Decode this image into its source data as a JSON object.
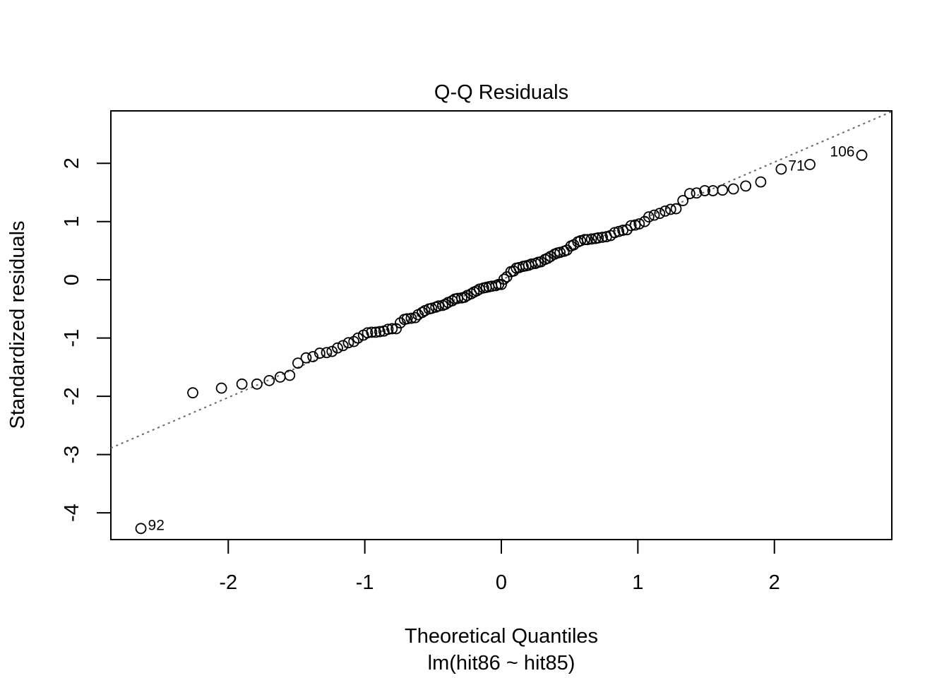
{
  "chart_data": {
    "type": "scatter",
    "title": "Q-Q Residuals",
    "xlabel": "Theoretical Quantiles",
    "sublabel": "lm(hit86 ~ hit85)",
    "ylabel": "Standardized residuals",
    "xlim": [
      -2.86,
      2.86
    ],
    "ylim": [
      -4.46,
      2.9
    ],
    "xticks": [
      -2,
      -1,
      0,
      1,
      2
    ],
    "yticks": [
      -4,
      -3,
      -2,
      -1,
      0,
      1,
      2
    ],
    "reference_line": {
      "style": "dotted",
      "color": "#666666",
      "intercept": 0.0,
      "slope": 1.01
    },
    "grid": false,
    "legend": "none",
    "points": [
      [
        -2.64,
        -4.27
      ],
      [
        -2.26,
        -1.94
      ],
      [
        -2.05,
        -1.86
      ],
      [
        -1.9,
        -1.79
      ],
      [
        -1.79,
        -1.79
      ],
      [
        -1.7,
        -1.73
      ],
      [
        -1.62,
        -1.67
      ],
      [
        -1.55,
        -1.64
      ],
      [
        -1.49,
        -1.43
      ],
      [
        -1.43,
        -1.34
      ],
      [
        -1.38,
        -1.32
      ],
      [
        -1.33,
        -1.26
      ],
      [
        -1.28,
        -1.25
      ],
      [
        -1.24,
        -1.23
      ],
      [
        -1.2,
        -1.17
      ],
      [
        -1.16,
        -1.13
      ],
      [
        -1.12,
        -1.08
      ],
      [
        -1.08,
        -1.06
      ],
      [
        -1.05,
        -1.0
      ],
      [
        -1.01,
        -0.95
      ],
      [
        -0.98,
        -0.91
      ],
      [
        -0.95,
        -0.9
      ],
      [
        -0.92,
        -0.9
      ],
      [
        -0.89,
        -0.89
      ],
      [
        -0.86,
        -0.88
      ],
      [
        -0.83,
        -0.85
      ],
      [
        -0.8,
        -0.84
      ],
      [
        -0.77,
        -0.84
      ],
      [
        -0.74,
        -0.74
      ],
      [
        -0.71,
        -0.68
      ],
      [
        -0.69,
        -0.67
      ],
      [
        -0.66,
        -0.66
      ],
      [
        -0.63,
        -0.65
      ],
      [
        -0.61,
        -0.6
      ],
      [
        -0.58,
        -0.56
      ],
      [
        -0.56,
        -0.53
      ],
      [
        -0.53,
        -0.5
      ],
      [
        -0.51,
        -0.49
      ],
      [
        -0.48,
        -0.47
      ],
      [
        -0.46,
        -0.45
      ],
      [
        -0.43,
        -0.44
      ],
      [
        -0.41,
        -0.42
      ],
      [
        -0.39,
        -0.39
      ],
      [
        -0.36,
        -0.36
      ],
      [
        -0.34,
        -0.33
      ],
      [
        -0.32,
        -0.32
      ],
      [
        -0.29,
        -0.31
      ],
      [
        -0.27,
        -0.3
      ],
      [
        -0.25,
        -0.27
      ],
      [
        -0.22,
        -0.24
      ],
      [
        -0.2,
        -0.21
      ],
      [
        -0.18,
        -0.19
      ],
      [
        -0.16,
        -0.16
      ],
      [
        -0.13,
        -0.14
      ],
      [
        -0.11,
        -0.13
      ],
      [
        -0.09,
        -0.12
      ],
      [
        -0.07,
        -0.11
      ],
      [
        -0.04,
        -0.1
      ],
      [
        -0.02,
        -0.08
      ],
      [
        0.0,
        -0.08
      ],
      [
        0.02,
        0.01
      ],
      [
        0.04,
        0.05
      ],
      [
        0.07,
        0.14
      ],
      [
        0.09,
        0.15
      ],
      [
        0.11,
        0.2
      ],
      [
        0.13,
        0.21
      ],
      [
        0.16,
        0.23
      ],
      [
        0.18,
        0.24
      ],
      [
        0.2,
        0.25
      ],
      [
        0.22,
        0.27
      ],
      [
        0.25,
        0.28
      ],
      [
        0.27,
        0.3
      ],
      [
        0.29,
        0.31
      ],
      [
        0.32,
        0.35
      ],
      [
        0.34,
        0.37
      ],
      [
        0.36,
        0.4
      ],
      [
        0.39,
        0.44
      ],
      [
        0.41,
        0.46
      ],
      [
        0.43,
        0.47
      ],
      [
        0.46,
        0.49
      ],
      [
        0.48,
        0.51
      ],
      [
        0.51,
        0.58
      ],
      [
        0.53,
        0.6
      ],
      [
        0.56,
        0.65
      ],
      [
        0.58,
        0.67
      ],
      [
        0.61,
        0.69
      ],
      [
        0.63,
        0.69
      ],
      [
        0.66,
        0.7
      ],
      [
        0.69,
        0.71
      ],
      [
        0.71,
        0.72
      ],
      [
        0.74,
        0.73
      ],
      [
        0.77,
        0.74
      ],
      [
        0.8,
        0.76
      ],
      [
        0.83,
        0.81
      ],
      [
        0.86,
        0.83
      ],
      [
        0.89,
        0.85
      ],
      [
        0.92,
        0.86
      ],
      [
        0.95,
        0.93
      ],
      [
        0.98,
        0.94
      ],
      [
        1.01,
        0.96
      ],
      [
        1.05,
        1.0
      ],
      [
        1.08,
        1.08
      ],
      [
        1.12,
        1.11
      ],
      [
        1.16,
        1.14
      ],
      [
        1.2,
        1.18
      ],
      [
        1.24,
        1.21
      ],
      [
        1.28,
        1.22
      ],
      [
        1.33,
        1.36
      ],
      [
        1.38,
        1.48
      ],
      [
        1.43,
        1.49
      ],
      [
        1.49,
        1.53
      ],
      [
        1.55,
        1.53
      ],
      [
        1.62,
        1.54
      ],
      [
        1.7,
        1.56
      ],
      [
        1.79,
        1.61
      ],
      [
        1.9,
        1.68
      ],
      [
        2.05,
        1.9
      ],
      [
        2.26,
        1.98
      ],
      [
        2.64,
        2.14
      ]
    ],
    "labeled_points": [
      {
        "label": "92",
        "x": -2.64,
        "y": -4.27,
        "side": "right"
      },
      {
        "label": "71",
        "x": 2.05,
        "y": 1.9,
        "side": "right"
      },
      {
        "label": "106",
        "x": 2.64,
        "y": 2.14,
        "side": "left"
      }
    ]
  }
}
